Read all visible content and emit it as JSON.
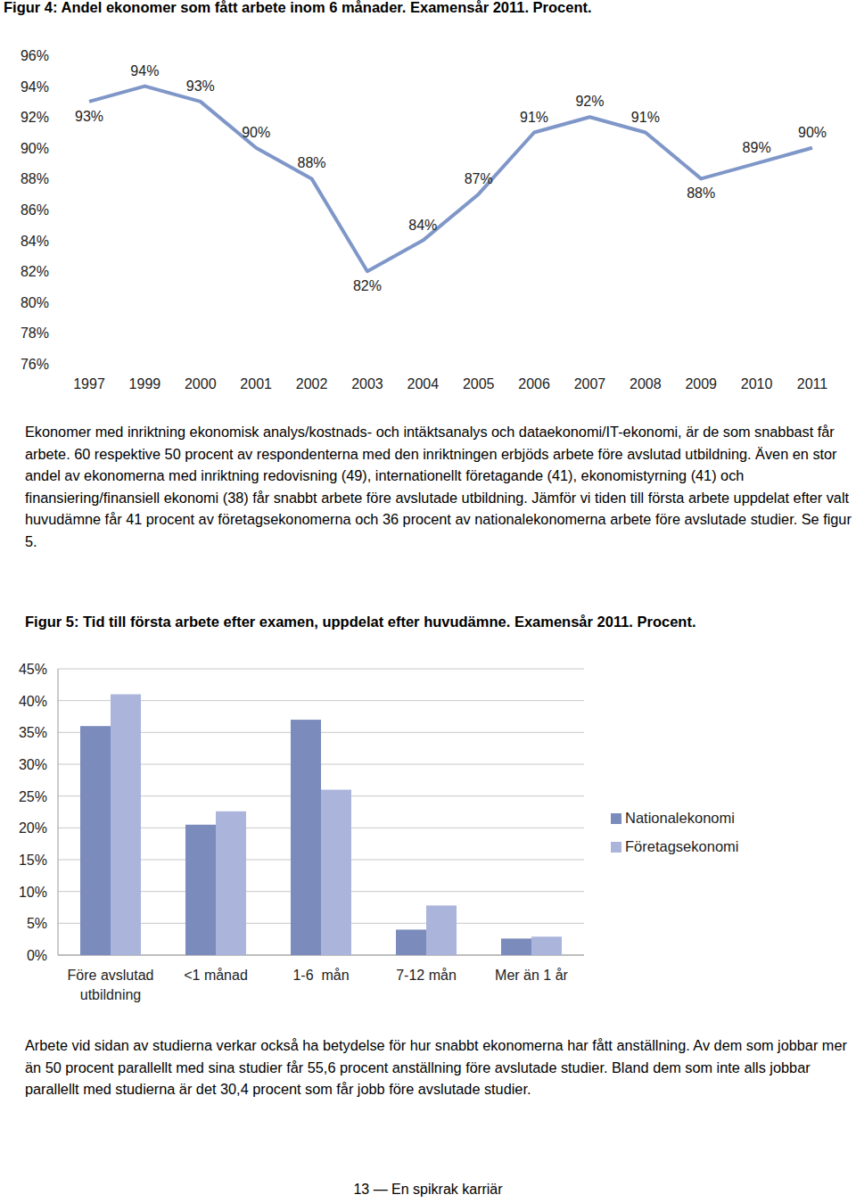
{
  "chart_data": [
    {
      "type": "line",
      "title": "Figur 4: Andel ekonomer som fått arbete inom 6 månader. Examensår 2011. Procent.",
      "categories": [
        "1997",
        "1999",
        "2000",
        "2001",
        "2002",
        "2003",
        "2004",
        "2005",
        "2006",
        "2007",
        "2008",
        "2009",
        "2010",
        "2011"
      ],
      "values": [
        93,
        94,
        93,
        90,
        88,
        82,
        84,
        87,
        91,
        92,
        91,
        88,
        89,
        90
      ],
      "value_labels": [
        "93%",
        "94%",
        "93%",
        "90%",
        "88%",
        "82%",
        "84%",
        "87%",
        "91%",
        "92%",
        "91%",
        "88%",
        "89%",
        "90%"
      ],
      "data_labels": true,
      "color": "#7f97c8",
      "ylim": [
        76,
        96
      ],
      "yticks": [
        {
          "value": 76,
          "label": "76%"
        },
        {
          "value": 78,
          "label": "78%"
        },
        {
          "value": 80,
          "label": "80%"
        },
        {
          "value": 82,
          "label": "82%"
        },
        {
          "value": 84,
          "label": "84%"
        },
        {
          "value": 86,
          "label": "86%"
        },
        {
          "value": 88,
          "label": "88%"
        },
        {
          "value": 90,
          "label": "90%"
        },
        {
          "value": 92,
          "label": "92%"
        },
        {
          "value": 94,
          "label": "94%"
        },
        {
          "value": 96,
          "label": "96%"
        }
      ],
      "grid": false
    },
    {
      "type": "bar",
      "title": "Figur 5: Tid till första arbete efter examen, uppdelat efter huvudämne. Examensår 2011. Procent.",
      "categories": [
        "Före avslutad utbildning",
        "<1 månad",
        "1-6  mån",
        "7-12 mån",
        "Mer än 1 år"
      ],
      "series": [
        {
          "name": "Nationalekonomi",
          "color": "#7b8bbb",
          "values": [
            36,
            20.5,
            37,
            4,
            2.6
          ]
        },
        {
          "name": "Företagsekonomi",
          "color": "#abb5dc",
          "values": [
            41,
            22.6,
            26,
            7.8,
            2.9
          ]
        }
      ],
      "ylim": [
        0,
        45
      ],
      "yticks": [
        {
          "value": 0,
          "label": "0%"
        },
        {
          "value": 5,
          "label": "5%"
        },
        {
          "value": 10,
          "label": "10%"
        },
        {
          "value": 15,
          "label": "15%"
        },
        {
          "value": 20,
          "label": "20%"
        },
        {
          "value": 25,
          "label": "25%"
        },
        {
          "value": 30,
          "label": "30%"
        },
        {
          "value": 35,
          "label": "35%"
        },
        {
          "value": 40,
          "label": "40%"
        },
        {
          "value": 45,
          "label": "45%"
        }
      ],
      "grid": true,
      "legend": "right"
    }
  ],
  "page": {
    "paragraphs": [
      "Ekonomer med inriktning ekonomisk analys/kostnads- och intäktsanalys och dataekonomi/IT-ekonomi, är de som snabbast får arbete. 60 respektive 50 procent av respondenterna med den inriktningen erbjöds arbete före avslutad utbildning. Även en stor andel av ekonomerna med inriktning redovisning (49), internationellt företagande (41), ekonomistyrning (41) och finansiering/finansiell ekonomi (38) får snabbt arbete före avslutade utbildning. Jämför vi tiden till första arbete uppdelat efter valt huvudämne får 41 procent av företagsekonomerna och 36 procent av nationalekonomerna arbete före avslutade studier. Se figur 5.",
      "Arbete vid sidan av studierna verkar också ha betydelse för hur snabbt ekonomerna har fått anställning. Av dem som jobbar mer än 50 procent parallellt med sina studier får 55,6 procent anställning före avslutade studier. Bland dem som inte alls jobbar parallellt med studierna är det 30,4 procent som får jobb före avslutade studier."
    ],
    "footer": "13 — En spikrak karriär"
  }
}
